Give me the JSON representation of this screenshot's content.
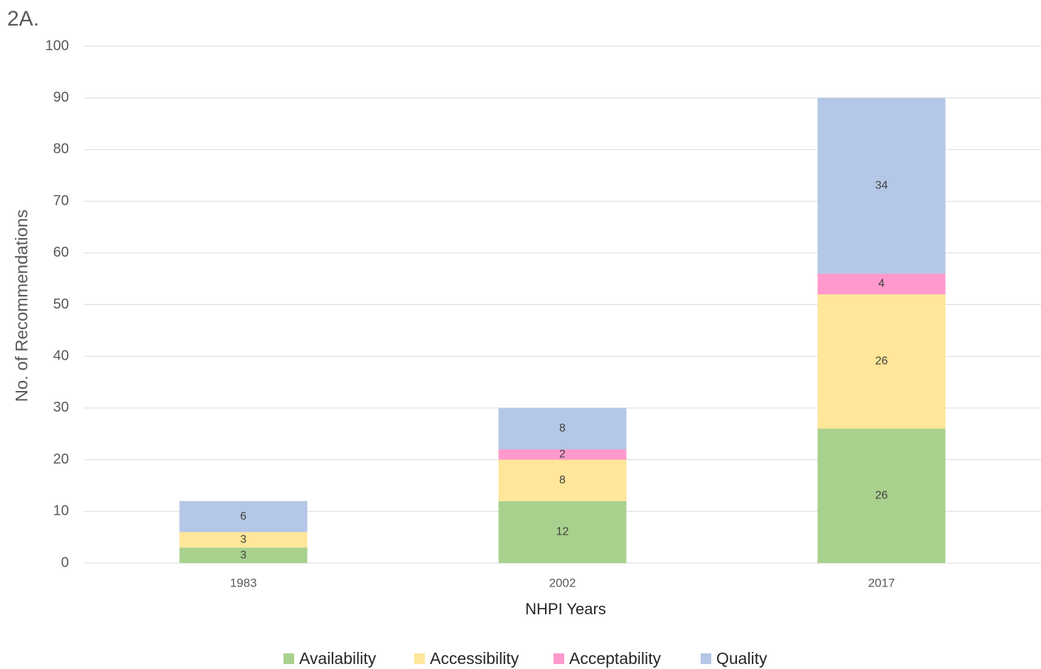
{
  "chart_data": {
    "type": "bar",
    "stacked": true,
    "title": "2A.",
    "x_label": "NHPI Years",
    "y_label": "No. of Recommendations",
    "categories": [
      "1983",
      "2002",
      "2017"
    ],
    "series": [
      {
        "name": "Availability",
        "color": "#a9d18e",
        "values": [
          3,
          12,
          26
        ]
      },
      {
        "name": "Accessibility",
        "color": "#ffe699",
        "values": [
          3,
          8,
          26
        ]
      },
      {
        "name": "Acceptability",
        "color": "#ff99cc",
        "values": [
          0,
          2,
          4
        ]
      },
      {
        "name": "Quality",
        "color": "#b4c7e7",
        "values": [
          6,
          8,
          34
        ]
      }
    ],
    "ylim": [
      0,
      100
    ],
    "yticks": [
      0,
      10,
      20,
      30,
      40,
      50,
      60,
      70,
      80,
      90,
      100
    ],
    "grid": true,
    "legend": "bottom"
  }
}
